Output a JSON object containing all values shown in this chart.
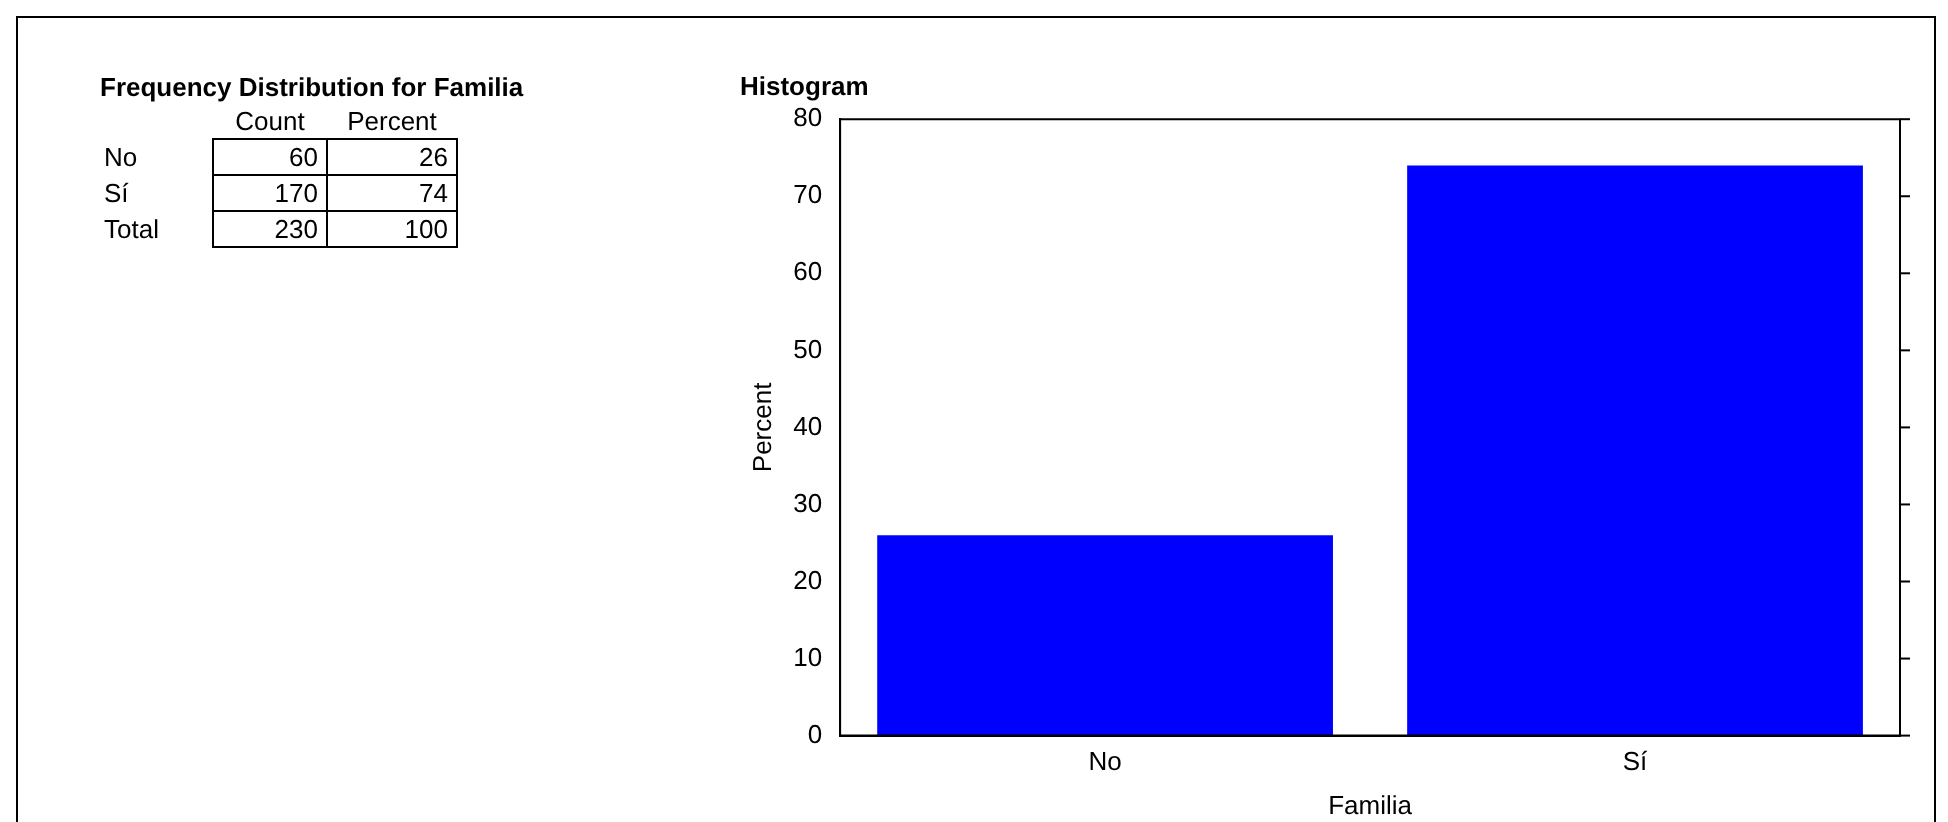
{
  "chart_data": [
    {
      "type": "other",
      "title": "Frequency Distribution for Familia",
      "categories": [
        "No",
        "Sí",
        "Total"
      ],
      "series": [
        {
          "name": "Count",
          "values": [
            60,
            170,
            230
          ]
        },
        {
          "name": "Percent",
          "values": [
            26,
            74,
            100
          ]
        }
      ],
      "data_labels": true
    },
    {
      "type": "bar",
      "title": "Histogram",
      "xlabel": "Familia",
      "ylabel": "Percent",
      "categories": [
        "No",
        "Sí"
      ],
      "values": [
        26,
        74
      ],
      "color": "#0000ff",
      "ylim": [
        0,
        80
      ],
      "yticks": [
        0,
        10,
        20,
        30,
        40,
        50,
        60,
        70,
        80
      ],
      "grid": false,
      "legend": false
    }
  ]
}
